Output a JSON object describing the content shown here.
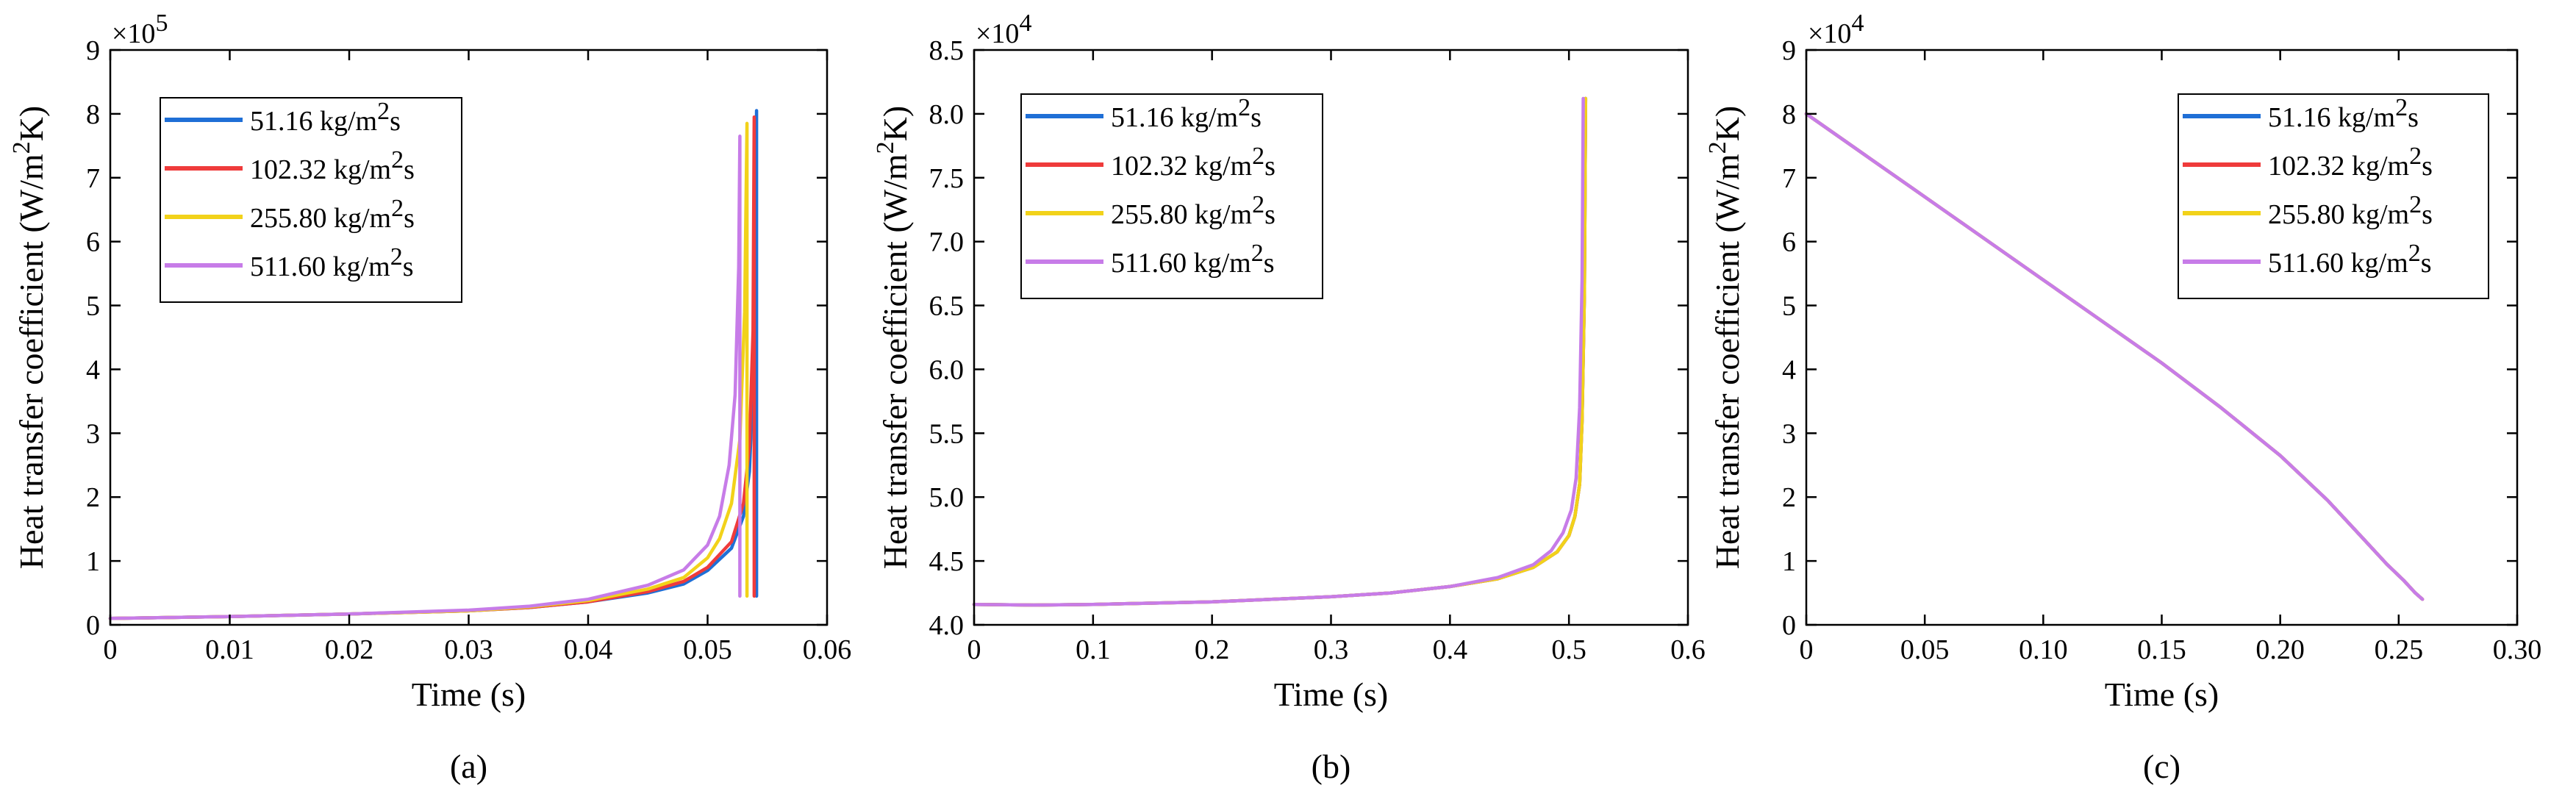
{
  "legend_labels": [
    "51.16 kg/m",
    "102.32 kg/m",
    "255.80 kg/m",
    "511.60 kg/m"
  ],
  "legend_sup": "2",
  "legend_suffix": "s",
  "colors": [
    "#1f6fd6",
    "#ef3b3b",
    "#f2d21a",
    "#c77ce8"
  ],
  "chart_data": [
    {
      "id": "a",
      "type": "line",
      "caption": "(a)",
      "xlabel": "Time (s)",
      "ylabel_main": "Heat transfer coefficient (W/m",
      "ylabel_sup": "2",
      "ylabel_end": "K)",
      "multiplier_base": "×10",
      "multiplier_exp": "5",
      "xlim": [
        0,
        0.06
      ],
      "ylim": [
        0,
        9
      ],
      "xticks": [
        0,
        0.01,
        0.02,
        0.03,
        0.04,
        0.05,
        0.06
      ],
      "xtick_labels": [
        "0",
        "0.01",
        "0.02",
        "0.03",
        "0.04",
        "0.05",
        "0.06"
      ],
      "yticks": [
        0,
        1,
        2,
        3,
        4,
        5,
        6,
        7,
        8,
        9
      ],
      "ytick_labels": [
        "0",
        "1",
        "2",
        "3",
        "4",
        "5",
        "6",
        "7",
        "8",
        "9"
      ],
      "legend_position": "top-left",
      "series": [
        {
          "name": "51.16 kg/m2s",
          "x": [
            0,
            0.01,
            0.02,
            0.03,
            0.035,
            0.04,
            0.045,
            0.048,
            0.05,
            0.052,
            0.053,
            0.0535,
            0.0539,
            0.0541,
            0.0541,
            0.0541
          ],
          "y": [
            0.1,
            0.13,
            0.17,
            0.22,
            0.27,
            0.36,
            0.5,
            0.64,
            0.85,
            1.2,
            1.7,
            2.4,
            4.2,
            8.05,
            0.45,
            0.45
          ]
        },
        {
          "name": "102.32 kg/m2s",
          "x": [
            0,
            0.01,
            0.02,
            0.03,
            0.035,
            0.04,
            0.045,
            0.048,
            0.05,
            0.052,
            0.053,
            0.0535,
            0.0538,
            0.0539,
            0.0539,
            0.0539
          ],
          "y": [
            0.1,
            0.13,
            0.17,
            0.22,
            0.27,
            0.36,
            0.52,
            0.68,
            0.9,
            1.3,
            1.9,
            2.8,
            4.6,
            7.95,
            0.45,
            0.45
          ]
        },
        {
          "name": "255.80 kg/m2s",
          "x": [
            0,
            0.01,
            0.02,
            0.03,
            0.035,
            0.04,
            0.045,
            0.048,
            0.05,
            0.051,
            0.052,
            0.0527,
            0.0531,
            0.0533,
            0.0533,
            0.0533
          ],
          "y": [
            0.1,
            0.13,
            0.17,
            0.22,
            0.28,
            0.38,
            0.56,
            0.74,
            1.05,
            1.35,
            1.9,
            2.9,
            4.9,
            7.85,
            0.45,
            0.45
          ]
        },
        {
          "name": "511.60 kg/m2s",
          "x": [
            0,
            0.01,
            0.02,
            0.03,
            0.035,
            0.04,
            0.045,
            0.048,
            0.05,
            0.051,
            0.0518,
            0.0523,
            0.0526,
            0.0527,
            0.0527,
            0.0527
          ],
          "y": [
            0.1,
            0.13,
            0.17,
            0.23,
            0.29,
            0.4,
            0.62,
            0.86,
            1.25,
            1.7,
            2.5,
            3.6,
            5.6,
            7.65,
            0.45,
            0.45
          ]
        }
      ]
    },
    {
      "id": "b",
      "type": "line",
      "caption": "(b)",
      "xlabel": "Time (s)",
      "ylabel_main": "Heat transfer coefficient (W/m",
      "ylabel_sup": "2",
      "ylabel_end": "K)",
      "multiplier_base": "×10",
      "multiplier_exp": "4",
      "xlim": [
        0,
        0.6
      ],
      "ylim": [
        4.0,
        8.5
      ],
      "xticks": [
        0,
        0.1,
        0.2,
        0.3,
        0.4,
        0.5,
        0.6
      ],
      "xtick_labels": [
        "0",
        "0.1",
        "0.2",
        "0.3",
        "0.4",
        "0.5",
        "0.6"
      ],
      "yticks": [
        4.0,
        4.5,
        5.0,
        5.5,
        6.0,
        6.5,
        7.0,
        7.5,
        8.0,
        8.5
      ],
      "ytick_labels": [
        "4.0",
        "4.5",
        "5.0",
        "5.5",
        "6.0",
        "6.5",
        "7.0",
        "7.5",
        "8.0",
        "8.5"
      ],
      "legend_position": "top-left",
      "series": [
        {
          "name": "51.16 kg/m2s",
          "x": [
            0,
            0.05,
            0.1,
            0.2,
            0.3,
            0.35,
            0.4,
            0.44,
            0.47,
            0.49,
            0.5,
            0.505,
            0.509,
            0.511,
            0.513,
            0.514
          ],
          "y": [
            4.16,
            4.155,
            4.16,
            4.18,
            4.22,
            4.25,
            4.3,
            4.36,
            4.45,
            4.57,
            4.7,
            4.85,
            5.1,
            5.6,
            6.6,
            8.12
          ]
        },
        {
          "name": "102.32 kg/m2s",
          "x": [
            0,
            0.05,
            0.1,
            0.2,
            0.3,
            0.35,
            0.4,
            0.44,
            0.47,
            0.49,
            0.5,
            0.505,
            0.509,
            0.511,
            0.513,
            0.514
          ],
          "y": [
            4.16,
            4.155,
            4.16,
            4.18,
            4.22,
            4.25,
            4.3,
            4.36,
            4.45,
            4.57,
            4.7,
            4.85,
            5.1,
            5.6,
            6.6,
            8.12
          ]
        },
        {
          "name": "255.80 kg/m2s",
          "x": [
            0,
            0.05,
            0.1,
            0.2,
            0.3,
            0.35,
            0.4,
            0.44,
            0.47,
            0.49,
            0.5,
            0.505,
            0.509,
            0.511,
            0.513,
            0.514
          ],
          "y": [
            4.16,
            4.155,
            4.16,
            4.18,
            4.22,
            4.25,
            4.3,
            4.36,
            4.45,
            4.57,
            4.7,
            4.85,
            5.1,
            5.6,
            6.6,
            8.12
          ]
        },
        {
          "name": "511.60 kg/m2s",
          "x": [
            0,
            0.05,
            0.1,
            0.2,
            0.3,
            0.35,
            0.4,
            0.44,
            0.47,
            0.485,
            0.495,
            0.502,
            0.506,
            0.509,
            0.511,
            0.512
          ],
          "y": [
            4.16,
            4.155,
            4.16,
            4.18,
            4.22,
            4.25,
            4.3,
            4.37,
            4.47,
            4.58,
            4.72,
            4.9,
            5.15,
            5.7,
            6.7,
            8.12
          ]
        }
      ]
    },
    {
      "id": "c",
      "type": "line",
      "caption": "(c)",
      "xlabel": "Time (s)",
      "ylabel_main": "Heat transfer coefficient (W/m",
      "ylabel_sup": "2",
      "ylabel_end": "K)",
      "multiplier_base": "×10",
      "multiplier_exp": "4",
      "xlim": [
        0,
        0.3
      ],
      "ylim": [
        0,
        9
      ],
      "xticks": [
        0,
        0.05,
        0.1,
        0.15,
        0.2,
        0.25,
        0.3
      ],
      "xtick_labels": [
        "0",
        "0.05",
        "0.10",
        "0.15",
        "0.20",
        "0.25",
        "0.30"
      ],
      "yticks": [
        0,
        1,
        2,
        3,
        4,
        5,
        6,
        7,
        8,
        9
      ],
      "ytick_labels": [
        "0",
        "1",
        "2",
        "3",
        "4",
        "5",
        "6",
        "7",
        "8",
        "9"
      ],
      "legend_position": "top-right",
      "series": [
        {
          "name": "51.16 kg/m2s",
          "x": [
            0,
            0.025,
            0.05,
            0.075,
            0.1,
            0.125,
            0.15,
            0.175,
            0.2,
            0.22,
            0.235,
            0.245,
            0.252,
            0.257,
            0.26
          ],
          "y": [
            8.0,
            7.35,
            6.7,
            6.05,
            5.4,
            4.75,
            4.1,
            3.4,
            2.65,
            1.95,
            1.35,
            0.95,
            0.7,
            0.5,
            0.4
          ]
        },
        {
          "name": "102.32 kg/m2s",
          "x": [
            0,
            0.025,
            0.05,
            0.075,
            0.1,
            0.125,
            0.15,
            0.175,
            0.2,
            0.22,
            0.235,
            0.245,
            0.252,
            0.257,
            0.26
          ],
          "y": [
            8.0,
            7.35,
            6.7,
            6.05,
            5.4,
            4.75,
            4.1,
            3.4,
            2.65,
            1.95,
            1.35,
            0.95,
            0.7,
            0.5,
            0.4
          ]
        },
        {
          "name": "255.80 kg/m2s",
          "x": [
            0,
            0.025,
            0.05,
            0.075,
            0.1,
            0.125,
            0.15,
            0.175,
            0.2,
            0.22,
            0.235,
            0.245,
            0.252,
            0.257,
            0.26
          ],
          "y": [
            8.0,
            7.35,
            6.7,
            6.05,
            5.4,
            4.75,
            4.1,
            3.4,
            2.65,
            1.95,
            1.35,
            0.95,
            0.7,
            0.5,
            0.4
          ]
        },
        {
          "name": "511.60 kg/m2s",
          "x": [
            0,
            0.025,
            0.05,
            0.075,
            0.1,
            0.125,
            0.15,
            0.175,
            0.2,
            0.22,
            0.235,
            0.245,
            0.252,
            0.257,
            0.26
          ],
          "y": [
            8.0,
            7.35,
            6.7,
            6.05,
            5.4,
            4.75,
            4.1,
            3.4,
            2.65,
            1.95,
            1.35,
            0.95,
            0.7,
            0.5,
            0.4
          ]
        }
      ]
    }
  ]
}
